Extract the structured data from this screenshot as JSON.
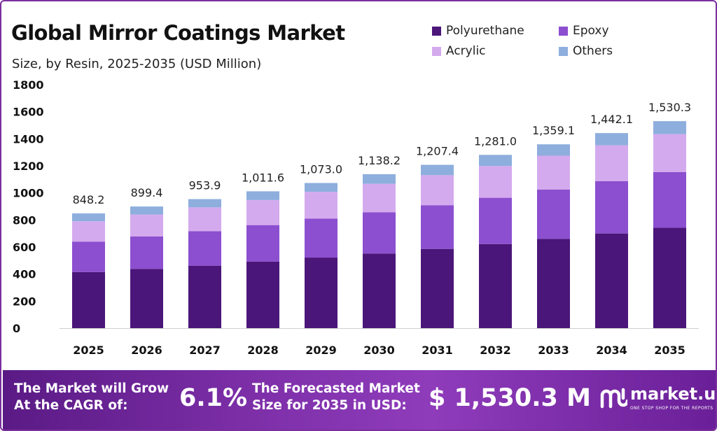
{
  "header": {
    "title": "Global Mirror Coatings Market",
    "subtitle": "Size, by Resin, 2025-2035 (USD Million)"
  },
  "legend": [
    {
      "label": "Polyurethane",
      "color": "#4b1679"
    },
    {
      "label": "Epoxy",
      "color": "#8c4fcf"
    },
    {
      "label": "Acrylic",
      "color": "#d4aaee"
    },
    {
      "label": "Others",
      "color": "#8eaedd"
    }
  ],
  "chart_data": {
    "type": "bar",
    "stacked": true,
    "categories": [
      "2025",
      "2026",
      "2027",
      "2028",
      "2029",
      "2030",
      "2031",
      "2032",
      "2033",
      "2034",
      "2035"
    ],
    "series": [
      {
        "name": "Polyurethane",
        "color": "#4b1679",
        "values": [
          415,
          438,
          462,
          492,
          522,
          552,
          586,
          622,
          660,
          700,
          742
        ]
      },
      {
        "name": "Epoxy",
        "color": "#8c4fcf",
        "values": [
          225,
          240,
          255,
          270,
          288,
          305,
          323,
          342,
          365,
          387,
          412
        ]
      },
      {
        "name": "Acrylic",
        "color": "#d4aaee",
        "values": [
          150,
          162,
          176,
          185,
          198,
          210,
          222,
          235,
          250,
          265,
          280
        ]
      },
      {
        "name": "Others",
        "color": "#8eaedd",
        "values": [
          58.2,
          59.4,
          60.9,
          64.6,
          65.0,
          71.2,
          76.4,
          82.0,
          84.1,
          90.1,
          96.3
        ]
      }
    ],
    "totals": [
      "848.2",
      "899.4",
      "953.9",
      "1,011.6",
      "1,073.0",
      "1,138.2",
      "1,207.4",
      "1,281.0",
      "1,359.1",
      "1,442.1",
      "1,530.3"
    ],
    "yticks": [
      "0",
      "200",
      "400",
      "600",
      "800",
      "1000",
      "1200",
      "1400",
      "1600",
      "1800"
    ],
    "ylim": [
      0,
      1800
    ],
    "xlabel": "",
    "ylabel": "",
    "grid": false,
    "legend_position": "top-right"
  },
  "footer": {
    "cagr_label": "The Market will Grow At the CAGR of:",
    "cagr_value": "6.1%",
    "forecast_label": "The Forecasted Market Size for 2035 in USD:",
    "forecast_value": "$ 1,530.3 M",
    "brand_name": "market.us",
    "brand_tagline": "ONE STOP SHOP FOR THE REPORTS"
  }
}
